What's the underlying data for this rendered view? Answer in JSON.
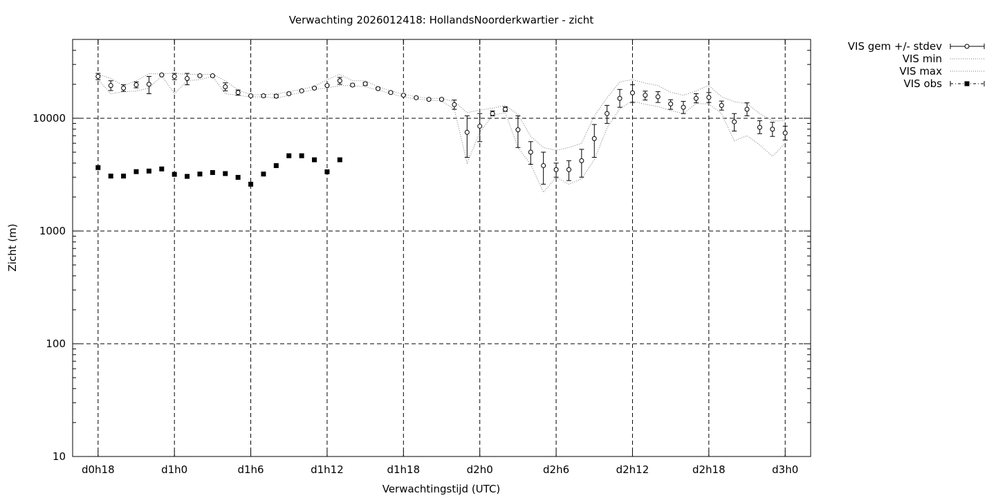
{
  "chart_data": {
    "type": "scatter",
    "title": "Verwachting 2026012418: HollandsNoorderkwartier - zicht",
    "xlabel": "Verwachtingstijd (UTC)",
    "ylabel": "Zicht (m)",
    "x_unit": "hours",
    "xlim": [
      16,
      74
    ],
    "x_ticks": [
      {
        "x": 18,
        "label": "d0h18"
      },
      {
        "x": 24,
        "label": "d1h0"
      },
      {
        "x": 30,
        "label": "d1h6"
      },
      {
        "x": 36,
        "label": "d1h12"
      },
      {
        "x": 42,
        "label": "d1h18"
      },
      {
        "x": 48,
        "label": "d2h0"
      },
      {
        "x": 54,
        "label": "d2h6"
      },
      {
        "x": 60,
        "label": "d2h12"
      },
      {
        "x": 66,
        "label": "d2h18"
      },
      {
        "x": 72,
        "label": "d3h0"
      }
    ],
    "y_scale": "log",
    "ylim": [
      10,
      50000
    ],
    "y_ticks": [
      {
        "y": 10,
        "label": "10"
      },
      {
        "y": 100,
        "label": "100"
      },
      {
        "y": 1000,
        "label": "1000"
      },
      {
        "y": 10000,
        "label": "10000"
      }
    ],
    "grid": true,
    "legend_position": "outside-top-right",
    "series": [
      {
        "name": "VIS gem +/- stdev",
        "style": "points-errorbars",
        "x": [
          18,
          19,
          20,
          21,
          22,
          23,
          24,
          25,
          26,
          27,
          28,
          29,
          30,
          31,
          32,
          33,
          34,
          35,
          36,
          37,
          38,
          39,
          40,
          41,
          42,
          43,
          44,
          45,
          46,
          47,
          48,
          49,
          50,
          51,
          52,
          53,
          54,
          55,
          56,
          57,
          58,
          59,
          60,
          61,
          62,
          63,
          64,
          65,
          66,
          67,
          68,
          69,
          70,
          71,
          72
        ],
        "y": [
          23500,
          19500,
          18500,
          19800,
          20000,
          24200,
          23500,
          22500,
          23800,
          23800,
          19000,
          16900,
          15800,
          15800,
          15700,
          16500,
          17500,
          18500,
          19500,
          21500,
          19700,
          20200,
          18300,
          16900,
          16000,
          15200,
          14700,
          14700,
          13200,
          7500,
          8500,
          11000,
          12000,
          7900,
          5000,
          3800,
          3500,
          3500,
          4200,
          6600,
          11000,
          15000,
          16800,
          16000,
          15500,
          13400,
          12500,
          15000,
          15300,
          13000,
          9300,
          12000,
          8300,
          8000,
          7400
        ],
        "y_low": [
          22000,
          17600,
          17300,
          18600,
          16500,
          24000,
          22000,
          19800,
          23400,
          23400,
          17500,
          16000,
          15600,
          15400,
          15300,
          16300,
          17300,
          18300,
          19300,
          20000,
          19200,
          19600,
          18000,
          16600,
          15800,
          15000,
          14500,
          14500,
          12000,
          4500,
          6200,
          10500,
          11500,
          5500,
          3900,
          2600,
          3000,
          2800,
          3000,
          4500,
          9000,
          12500,
          13800,
          14500,
          13800,
          12000,
          11000,
          13700,
          13800,
          11800,
          7700,
          10500,
          7300,
          6900,
          6400
        ],
        "y_high": [
          25000,
          21500,
          19800,
          21000,
          23500,
          24500,
          25000,
          25000,
          24200,
          24200,
          20600,
          17800,
          16000,
          16200,
          16200,
          16800,
          17800,
          18800,
          19800,
          23000,
          20200,
          20800,
          18700,
          17300,
          16300,
          15400,
          15000,
          15000,
          14500,
          10500,
          11000,
          11600,
          12600,
          10500,
          6200,
          5000,
          4000,
          4200,
          5300,
          8800,
          13000,
          18000,
          19800,
          17400,
          17200,
          14600,
          14100,
          16500,
          16900,
          14200,
          11000,
          13700,
          9500,
          9200,
          8500
        ]
      },
      {
        "name": "VIS min",
        "style": "dotted-line",
        "x": [
          18,
          19,
          20,
          21,
          22,
          23,
          24,
          25,
          26,
          27,
          28,
          29,
          30,
          31,
          32,
          33,
          34,
          35,
          36,
          37,
          38,
          39,
          40,
          41,
          42,
          43,
          44,
          45,
          46,
          47,
          48,
          49,
          50,
          51,
          52,
          53,
          54,
          55,
          56,
          57,
          58,
          59,
          60,
          61,
          62,
          63,
          64,
          65,
          66,
          67,
          68,
          69,
          70,
          71,
          72
        ],
        "y": [
          22000,
          16500,
          17200,
          17400,
          18500,
          23800,
          16500,
          21500,
          22000,
          23500,
          16500,
          16000,
          15400,
          15500,
          15000,
          16000,
          17000,
          18000,
          18500,
          19500,
          19500,
          19000,
          17800,
          16500,
          15500,
          14800,
          14500,
          14200,
          12000,
          4000,
          7500,
          10600,
          11200,
          5500,
          3900,
          2200,
          3000,
          2600,
          2900,
          4300,
          8200,
          12200,
          14200,
          13300,
          12700,
          11700,
          11000,
          13500,
          13400,
          11000,
          6300,
          7000,
          5800,
          4600,
          6000
        ]
      },
      {
        "name": "VIS max",
        "style": "dotted-line",
        "x": [
          18,
          19,
          20,
          21,
          22,
          23,
          24,
          25,
          26,
          27,
          28,
          29,
          30,
          31,
          32,
          33,
          34,
          35,
          36,
          37,
          38,
          39,
          40,
          41,
          42,
          43,
          44,
          45,
          46,
          47,
          48,
          49,
          50,
          51,
          52,
          53,
          54,
          55,
          56,
          57,
          58,
          59,
          60,
          61,
          62,
          63,
          64,
          65,
          66,
          67,
          68,
          69,
          70,
          71,
          72
        ],
        "y": [
          24500,
          22500,
          19500,
          21500,
          24800,
          24800,
          25000,
          24500,
          24500,
          24500,
          21500,
          17800,
          16200,
          16200,
          16500,
          17200,
          18000,
          19200,
          22000,
          24500,
          21500,
          21500,
          19000,
          17500,
          16300,
          15500,
          15000,
          15000,
          14000,
          11200,
          11800,
          12300,
          13000,
          10800,
          6900,
          5500,
          5200,
          5500,
          6000,
          10500,
          15200,
          21000,
          22000,
          20500,
          19500,
          17000,
          16000,
          17500,
          19500,
          15500,
          14000,
          13500,
          11000,
          9500,
          9500
        ]
      },
      {
        "name": "VIS obs",
        "style": "filled-squares",
        "x": [
          18,
          19,
          20,
          21,
          22,
          23,
          24,
          25,
          26,
          27,
          28,
          29,
          30,
          31,
          32,
          33,
          34,
          35,
          36,
          37
        ],
        "y": [
          3650,
          3070,
          3070,
          3360,
          3400,
          3550,
          3180,
          3050,
          3200,
          3300,
          3230,
          2990,
          2600,
          3200,
          3800,
          4650,
          4650,
          4280,
          3350,
          4280
        ]
      }
    ]
  }
}
